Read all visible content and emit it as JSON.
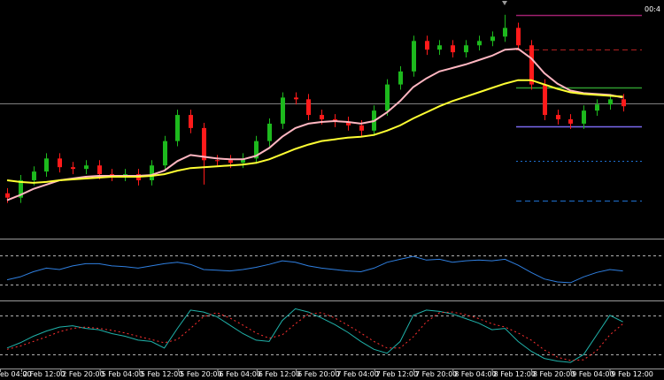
{
  "chart_data": [
    {
      "type": "candlestick",
      "clock_label": "00:4",
      "time_labels": [
        "eb 04:00",
        "2 Feb 12:00",
        "2 Feb 20:00",
        "5 Feb 04:00",
        "5 Feb 12:00",
        "5 Feb 20:00",
        "6 Feb 04:00",
        "6 Feb 12:00",
        "6 Feb 20:00",
        "7 Feb 04:00",
        "7 Feb 12:00",
        "7 Feb 20:00",
        "8 Feb 04:00",
        "8 Feb 12:00",
        "8 Feb 20:00",
        "9 Feb 04:00",
        "9 Feb 12:00"
      ],
      "open": [
        50,
        45,
        65,
        75,
        90,
        80,
        78,
        82,
        72,
        70,
        72,
        65,
        82,
        110,
        140,
        125,
        88,
        88,
        85,
        90,
        110,
        130,
        160,
        158,
        140,
        135,
        132,
        128,
        122,
        145,
        175,
        190,
        225,
        215,
        220,
        212,
        220,
        225,
        230,
        240,
        220,
        175,
        140,
        135,
        130,
        145,
        152,
        158
      ],
      "high": [
        56,
        71,
        81,
        96,
        96,
        86,
        88,
        88,
        78,
        78,
        78,
        88,
        116,
        146,
        146,
        131,
        94,
        94,
        96,
        116,
        136,
        166,
        166,
        164,
        146,
        141,
        138,
        134,
        151,
        181,
        196,
        231,
        231,
        226,
        226,
        226,
        231,
        236,
        255,
        246,
        226,
        181,
        146,
        141,
        151,
        158,
        164,
        164
      ],
      "low": [
        39,
        39,
        59,
        69,
        74,
        72,
        72,
        66,
        64,
        64,
        59,
        59,
        76,
        104,
        119,
        60,
        82,
        79,
        79,
        84,
        104,
        124,
        152,
        134,
        129,
        126,
        122,
        116,
        116,
        139,
        169,
        184,
        209,
        209,
        206,
        206,
        214,
        219,
        224,
        214,
        169,
        134,
        129,
        124,
        124,
        139,
        146,
        144
      ],
      "close": [
        45,
        65,
        75,
        90,
        80,
        78,
        82,
        72,
        70,
        72,
        65,
        82,
        110,
        140,
        125,
        88,
        88,
        85,
        90,
        110,
        130,
        160,
        158,
        140,
        135,
        132,
        128,
        122,
        145,
        175,
        190,
        225,
        215,
        220,
        212,
        220,
        225,
        230,
        240,
        220,
        175,
        140,
        135,
        130,
        145,
        152,
        158,
        150
      ],
      "up_color": "#1db91d",
      "down_color": "#ff1a1a",
      "ylim": [
        0,
        270
      ],
      "overlays": [
        {
          "color": "#ffb6c1",
          "values": [
            42,
            48,
            55,
            60,
            65,
            67,
            69,
            70,
            70,
            70,
            70,
            71,
            76,
            87,
            94,
            92,
            90,
            89,
            89,
            93,
            102,
            115,
            125,
            130,
            132,
            133,
            132,
            130,
            133,
            143,
            156,
            172,
            182,
            190,
            194,
            198,
            203,
            208,
            215,
            216,
            205,
            188,
            176,
            168,
            165,
            164,
            163,
            160
          ]
        },
        {
          "color": "#ffff33",
          "values": [
            65,
            63,
            62,
            63,
            65,
            66,
            67,
            68,
            69,
            69,
            69,
            70,
            72,
            76,
            79,
            80,
            81,
            82,
            83,
            85,
            89,
            95,
            101,
            106,
            110,
            112,
            114,
            115,
            117,
            122,
            128,
            136,
            143,
            150,
            156,
            161,
            166,
            171,
            176,
            180,
            180,
            175,
            170,
            166,
            164,
            163,
            162,
            161
          ]
        }
      ],
      "levels": [
        {
          "value": 153,
          "color": "#808080",
          "style": "solid",
          "span": "full"
        },
        {
          "value": 255,
          "color": "#a0206e",
          "style": "solid",
          "span": "right"
        },
        {
          "value": 215,
          "color": "#b02020",
          "style": "dashed",
          "span": "right"
        },
        {
          "value": 172,
          "color": "#2e9a2e",
          "style": "solid",
          "span": "right"
        },
        {
          "value": 127,
          "color": "#7b68ee",
          "style": "solid",
          "span": "right"
        },
        {
          "value": 87,
          "color": "#1e70d0",
          "style": "dotted",
          "span": "right"
        },
        {
          "value": 42,
          "color": "#1e70d0",
          "style": "dashed",
          "span": "right"
        }
      ]
    },
    {
      "type": "line",
      "ylim": [
        10,
        90
      ],
      "levels": [
        70,
        30
      ],
      "series": [
        {
          "color": "#2f7fe0",
          "style": "solid",
          "values": [
            36,
            40,
            47,
            52,
            50,
            55,
            58,
            58,
            55,
            54,
            52,
            55,
            58,
            60,
            57,
            50,
            49,
            48,
            50,
            53,
            57,
            62,
            60,
            55,
            52,
            50,
            48,
            47,
            52,
            60,
            64,
            68,
            63,
            64,
            60,
            62,
            63,
            62,
            64,
            56,
            46,
            37,
            33,
            32,
            40,
            46,
            50,
            48
          ]
        }
      ]
    },
    {
      "type": "line",
      "ylim": [
        0,
        100
      ],
      "levels": [
        80,
        20
      ],
      "series": [
        {
          "color": "#20b2aa",
          "style": "solid",
          "values": [
            30,
            38,
            48,
            56,
            62,
            64,
            60,
            58,
            52,
            48,
            42,
            40,
            30,
            60,
            88,
            85,
            78,
            65,
            52,
            42,
            40,
            72,
            90,
            85,
            76,
            66,
            54,
            40,
            28,
            22,
            40,
            80,
            88,
            86,
            82,
            75,
            68,
            58,
            60,
            40,
            25,
            14,
            10,
            8,
            20,
            50,
            80,
            70
          ]
        },
        {
          "color": "#ff3030",
          "style": "dotted",
          "values": [
            28,
            33,
            40,
            47,
            55,
            60,
            62,
            60,
            57,
            53,
            48,
            43,
            38,
            43,
            60,
            78,
            84,
            76,
            65,
            53,
            45,
            50,
            67,
            82,
            84,
            76,
            65,
            53,
            40,
            30,
            30,
            47,
            70,
            84,
            85,
            81,
            75,
            67,
            62,
            53,
            42,
            27,
            16,
            11,
            12,
            26,
            50,
            67
          ]
        }
      ]
    }
  ]
}
